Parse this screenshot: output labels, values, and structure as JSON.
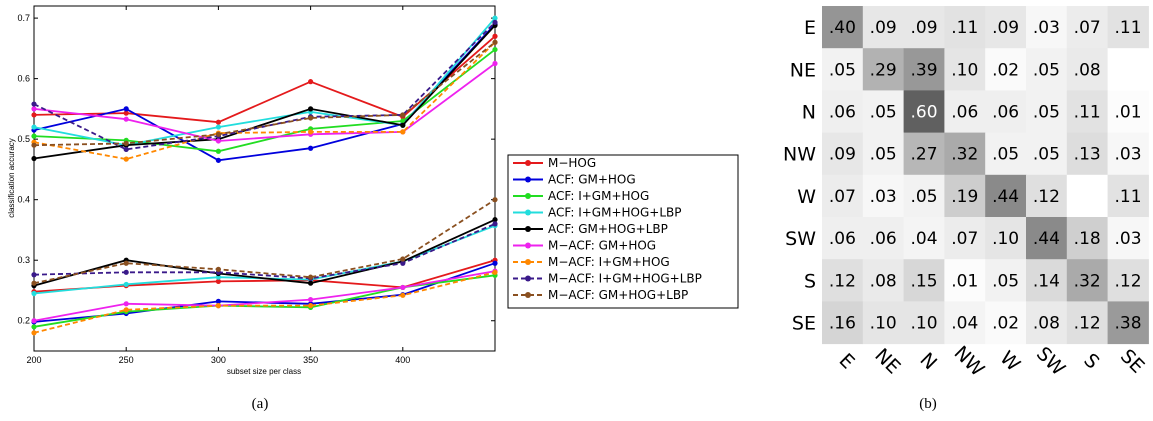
{
  "captions": {
    "a": "(a)",
    "b": "(b)"
  },
  "chart_data": [
    {
      "type": "line",
      "xlabel": "subset size per class",
      "ylabel": "classification accuracy",
      "xlim": [
        200,
        450
      ],
      "ylim": [
        0.15,
        0.72
      ],
      "x_ticks": [
        "200",
        "250",
        "300",
        "350",
        "400"
      ],
      "y_ticks": [
        "0.2",
        "0.3",
        "0.4",
        "0.5",
        "0.6",
        "0.7"
      ],
      "grid": false,
      "legend_position": "right",
      "x": [
        200,
        250,
        300,
        350,
        400,
        450
      ],
      "series": [
        {
          "name": "M−HOG",
          "color": "#e41a1c",
          "style": "solid",
          "marker": "dot",
          "group": "upper",
          "values": [
            0.54,
            0.543,
            0.528,
            0.595,
            0.537,
            0.67
          ]
        },
        {
          "name": "ACF:   GM+HOG",
          "color": "#0000dd",
          "style": "solid",
          "marker": "dot",
          "group": "upper",
          "values": [
            0.515,
            0.55,
            0.465,
            0.485,
            0.525,
            0.69
          ]
        },
        {
          "name": "ACF:   I+GM+HOG",
          "color": "#22dd22",
          "style": "solid",
          "marker": "dot",
          "group": "upper",
          "values": [
            0.505,
            0.498,
            0.48,
            0.517,
            0.53,
            0.648
          ]
        },
        {
          "name": "ACF:   I+GM+HOG+LBP",
          "color": "#22dddd",
          "style": "solid",
          "marker": "dot",
          "group": "upper",
          "values": [
            0.52,
            0.49,
            0.52,
            0.545,
            0.523,
            0.7
          ]
        },
        {
          "name": "ACF:   GM+HOG+LBP",
          "color": "#000000",
          "style": "solid",
          "marker": "dot",
          "group": "upper",
          "values": [
            0.468,
            0.49,
            0.5,
            0.55,
            0.523,
            0.688
          ]
        },
        {
          "name": "M−ACF:   GM+HOG",
          "color": "#ee22ee",
          "style": "solid",
          "marker": "dot",
          "group": "upper",
          "values": [
            0.55,
            0.533,
            0.497,
            0.508,
            0.512,
            0.625
          ]
        },
        {
          "name": "M−ACF:   I+GM+HOG",
          "color": "#ff8800",
          "style": "dashed",
          "marker": "dot",
          "group": "upper",
          "values": [
            0.495,
            0.467,
            0.51,
            0.512,
            0.512,
            0.66
          ]
        },
        {
          "name": "M−ACF:   I+GM+HOG+LBP",
          "color": "#3a1a8a",
          "style": "dashed",
          "marker": "dot",
          "group": "upper",
          "values": [
            0.558,
            0.483,
            0.505,
            0.537,
            0.54,
            0.693
          ]
        },
        {
          "name": "M−ACF:   GM+HOG+LBP",
          "color": "#8a5020",
          "style": "dashed",
          "marker": "dot",
          "group": "upper",
          "values": [
            0.49,
            0.493,
            0.508,
            0.535,
            0.54,
            0.66
          ]
        },
        {
          "name": "M−HOG",
          "color": "#e41a1c",
          "style": "solid",
          "marker": "dot",
          "group": "lower",
          "values": [
            0.248,
            0.258,
            0.265,
            0.267,
            0.255,
            0.3
          ]
        },
        {
          "name": "ACF:   GM+HOG",
          "color": "#0000dd",
          "style": "solid",
          "marker": "dot",
          "group": "lower",
          "values": [
            0.198,
            0.212,
            0.232,
            0.228,
            0.243,
            0.295
          ]
        },
        {
          "name": "ACF:   I+GM+HOG",
          "color": "#22dd22",
          "style": "solid",
          "marker": "dot",
          "group": "lower",
          "values": [
            0.19,
            0.215,
            0.225,
            0.222,
            0.255,
            0.275
          ]
        },
        {
          "name": "ACF:   I+GM+HOG+LBP",
          "color": "#22dddd",
          "style": "solid",
          "marker": "dot",
          "group": "lower",
          "values": [
            0.245,
            0.26,
            0.272,
            0.268,
            0.298,
            0.357
          ]
        },
        {
          "name": "ACF:   GM+HOG+LBP",
          "color": "#000000",
          "style": "solid",
          "marker": "dot",
          "group": "lower",
          "values": [
            0.258,
            0.3,
            0.278,
            0.262,
            0.298,
            0.367
          ]
        },
        {
          "name": "M−ACF:   GM+HOG",
          "color": "#ee22ee",
          "style": "solid",
          "marker": "dot",
          "group": "lower",
          "values": [
            0.2,
            0.228,
            0.225,
            0.235,
            0.255,
            0.282
          ]
        },
        {
          "name": "M−ACF:   I+GM+HOG",
          "color": "#ff8800",
          "style": "dashed",
          "marker": "dot",
          "group": "lower",
          "values": [
            0.18,
            0.218,
            0.225,
            0.225,
            0.242,
            0.28
          ]
        },
        {
          "name": "M−ACF:   I+GM+HOG+LBP",
          "color": "#3a1a8a",
          "style": "dashed",
          "marker": "dot",
          "group": "lower",
          "values": [
            0.276,
            0.28,
            0.28,
            0.27,
            0.295,
            0.36
          ]
        },
        {
          "name": "M−ACF:   GM+HOG+LBP",
          "color": "#8a5020",
          "style": "dashed",
          "marker": "dot",
          "group": "lower",
          "values": [
            0.262,
            0.295,
            0.285,
            0.272,
            0.302,
            0.4
          ]
        }
      ]
    },
    {
      "type": "heatmap",
      "row_labels": [
        "E",
        "NE",
        "N",
        "NW",
        "W",
        "SW",
        "S",
        "SE"
      ],
      "col_labels": [
        "E",
        "NE",
        "N",
        "NW",
        "W",
        "SW",
        "S",
        "SE"
      ],
      "values": [
        [
          0.4,
          0.09,
          0.09,
          0.11,
          0.09,
          0.03,
          0.07,
          0.11
        ],
        [
          0.05,
          0.29,
          0.39,
          0.1,
          0.02,
          0.05,
          0.08,
          0.0
        ],
        [
          0.06,
          0.05,
          0.6,
          0.06,
          0.06,
          0.05,
          0.11,
          0.01
        ],
        [
          0.09,
          0.05,
          0.27,
          0.32,
          0.05,
          0.05,
          0.13,
          0.03
        ],
        [
          0.07,
          0.03,
          0.05,
          0.19,
          0.44,
          0.12,
          0.0,
          0.11
        ],
        [
          0.06,
          0.06,
          0.04,
          0.07,
          0.1,
          0.44,
          0.18,
          0.03
        ],
        [
          0.12,
          0.08,
          0.15,
          0.01,
          0.05,
          0.14,
          0.32,
          0.12
        ],
        [
          0.16,
          0.1,
          0.1,
          0.04,
          0.02,
          0.08,
          0.12,
          0.38
        ]
      ],
      "cell_text": [
        [
          ".40",
          ".09",
          ".09",
          ".11",
          ".09",
          ".03",
          ".07",
          ".11"
        ],
        [
          ".05",
          ".29",
          ".39",
          ".10",
          ".02",
          ".05",
          ".08",
          ""
        ],
        [
          ".06",
          ".05",
          ".60",
          ".06",
          ".06",
          ".05",
          ".11",
          ".01"
        ],
        [
          ".09",
          ".05",
          ".27",
          ".32",
          ".05",
          ".05",
          ".13",
          ".03"
        ],
        [
          ".07",
          ".03",
          ".05",
          ".19",
          ".44",
          ".12",
          "",
          ".11"
        ],
        [
          ".06",
          ".06",
          ".04",
          ".07",
          ".10",
          ".44",
          ".18",
          ".03"
        ],
        [
          ".12",
          ".08",
          ".15",
          ".01",
          ".05",
          ".14",
          ".32",
          ".12"
        ],
        [
          ".16",
          ".10",
          ".10",
          ".04",
          ".02",
          ".08",
          ".12",
          ".38"
        ]
      ],
      "colormap": "white-to-gray",
      "grid": false
    }
  ]
}
